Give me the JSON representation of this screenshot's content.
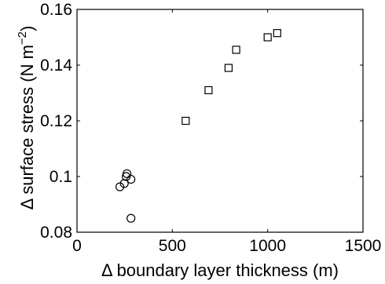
{
  "chart_data": {
    "type": "scatter",
    "title": "",
    "xlabel": "Δ boundary layer thickness (m)",
    "ylabel_main": "Δ surface stress (N m",
    "ylabel_sup": "−2",
    "ylabel_close": ")",
    "xlim": [
      0,
      1500
    ],
    "ylim": [
      0.08,
      0.16
    ],
    "xticks": [
      0,
      500,
      1000,
      1500
    ],
    "xtick_labels": [
      "0",
      "500",
      "1000",
      "1500"
    ],
    "yticks": [
      0.08,
      0.1,
      0.12,
      0.14,
      0.16
    ],
    "ytick_labels": [
      "0.08",
      "0.1",
      "0.12",
      "0.14",
      "0.16"
    ],
    "grid": false,
    "series": [
      {
        "marker": "circle",
        "points": [
          {
            "x": 225,
            "y": 0.0963
          },
          {
            "x": 248,
            "y": 0.0975
          },
          {
            "x": 258,
            "y": 0.1
          },
          {
            "x": 262,
            "y": 0.101
          },
          {
            "x": 283,
            "y": 0.099
          },
          {
            "x": 283,
            "y": 0.085
          }
        ]
      },
      {
        "marker": "square",
        "points": [
          {
            "x": 570,
            "y": 0.12
          },
          {
            "x": 690,
            "y": 0.131
          },
          {
            "x": 795,
            "y": 0.139
          },
          {
            "x": 835,
            "y": 0.1455
          },
          {
            "x": 1000,
            "y": 0.15
          },
          {
            "x": 1050,
            "y": 0.1515
          }
        ]
      }
    ]
  }
}
